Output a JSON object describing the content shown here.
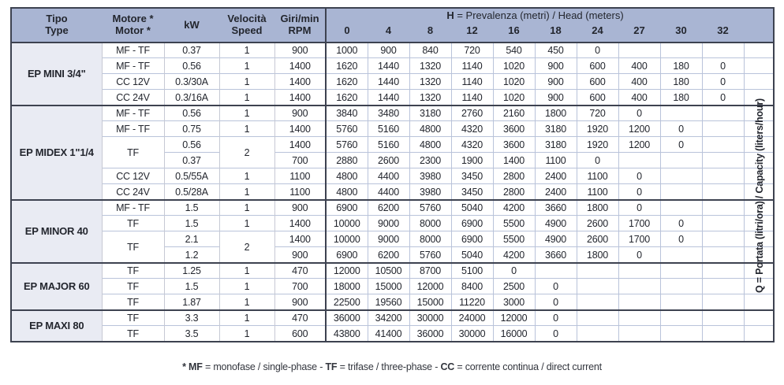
{
  "colors": {
    "header_bg": "#a9b5d3",
    "tipo_bg": "#e9ebf3",
    "grid_light": "#b9c3da",
    "grid_dark": "#3d4250",
    "text": "#23262e"
  },
  "header": {
    "tipo_line1": "Tipo",
    "tipo_line2": "Type",
    "motor_line1": "Motore *",
    "motor_line2": "Motor *",
    "kw": "kW",
    "speed_line1": "Velocità",
    "speed_line2": "Speed",
    "rpm_line1": "Giri/min",
    "rpm_line2": "RPM",
    "h_bold": "H",
    "h_rest": " = Prevalenza (metri) / Head (meters)",
    "head_values": [
      "0",
      "4",
      "8",
      "12",
      "16",
      "18",
      "24",
      "27",
      "30",
      "32"
    ],
    "q_label": "Q = Portata (litri/ora) / Capacity (liters/hour)"
  },
  "sections": [
    {
      "tipo": "EP MINI 3/4\"",
      "rows": [
        {
          "motor": "MF - TF",
          "kw": "0.37",
          "speed": "1",
          "rpm": "900",
          "values": [
            "1000",
            "900",
            "840",
            "720",
            "540",
            "450",
            "0",
            "",
            "",
            ""
          ]
        },
        {
          "motor": "MF - TF",
          "kw": "0.56",
          "speed": "1",
          "rpm": "1400",
          "values": [
            "1620",
            "1440",
            "1320",
            "1140",
            "1020",
            "900",
            "600",
            "400",
            "180",
            "0"
          ]
        },
        {
          "motor": "CC 12V",
          "kw": "0.3/30A",
          "speed": "1",
          "rpm": "1400",
          "values": [
            "1620",
            "1440",
            "1320",
            "1140",
            "1020",
            "900",
            "600",
            "400",
            "180",
            "0"
          ]
        },
        {
          "motor": "CC 24V",
          "kw": "0.3/16A",
          "speed": "1",
          "rpm": "1400",
          "values": [
            "1620",
            "1440",
            "1320",
            "1140",
            "1020",
            "900",
            "600",
            "400",
            "180",
            "0"
          ]
        }
      ]
    },
    {
      "tipo": "EP MIDEX 1\"1/4",
      "rows": [
        {
          "motor": "MF - TF",
          "kw": "0.56",
          "speed": "1",
          "rpm": "900",
          "values": [
            "3840",
            "3480",
            "3180",
            "2760",
            "2160",
            "1800",
            "720",
            "0",
            "",
            ""
          ]
        },
        {
          "motor": "MF - TF",
          "kw": "0.75",
          "speed": "1",
          "rpm": "1400",
          "values": [
            "5760",
            "5160",
            "4800",
            "4320",
            "3600",
            "3180",
            "1920",
            "1200",
            "0",
            ""
          ]
        },
        {
          "motor": "TF",
          "speed": "2",
          "sub": [
            {
              "kw": "0.56",
              "rpm": "1400",
              "values": [
                "5760",
                "5160",
                "4800",
                "4320",
                "3600",
                "3180",
                "1920",
                "1200",
                "0",
                ""
              ]
            },
            {
              "kw": "0.37",
              "rpm": "700",
              "values": [
                "2880",
                "2600",
                "2300",
                "1900",
                "1400",
                "1100",
                "0",
                "",
                "",
                ""
              ]
            }
          ]
        },
        {
          "motor": "CC 12V",
          "kw": "0.5/55A",
          "speed": "1",
          "rpm": "1100",
          "values": [
            "4800",
            "4400",
            "3980",
            "3450",
            "2800",
            "2400",
            "1100",
            "0",
            "",
            ""
          ]
        },
        {
          "motor": "CC 24V",
          "kw": "0.5/28A",
          "speed": "1",
          "rpm": "1100",
          "values": [
            "4800",
            "4400",
            "3980",
            "3450",
            "2800",
            "2400",
            "1100",
            "0",
            "",
            ""
          ]
        }
      ]
    },
    {
      "tipo": "EP MINOR 40",
      "rows": [
        {
          "motor": "MF - TF",
          "kw": "1.5",
          "speed": "1",
          "rpm": "900",
          "values": [
            "6900",
            "6200",
            "5760",
            "5040",
            "4200",
            "3660",
            "1800",
            "0",
            "",
            ""
          ]
        },
        {
          "motor": "TF",
          "kw": "1.5",
          "speed": "1",
          "rpm": "1400",
          "values": [
            "10000",
            "9000",
            "8000",
            "6900",
            "5500",
            "4900",
            "2600",
            "1700",
            "0",
            ""
          ]
        },
        {
          "motor": "TF",
          "speed": "2",
          "sub": [
            {
              "kw": "2.1",
              "rpm": "1400",
              "values": [
                "10000",
                "9000",
                "8000",
                "6900",
                "5500",
                "4900",
                "2600",
                "1700",
                "0",
                ""
              ]
            },
            {
              "kw": "1.2",
              "rpm": "900",
              "values": [
                "6900",
                "6200",
                "5760",
                "5040",
                "4200",
                "3660",
                "1800",
                "0",
                "",
                ""
              ]
            }
          ]
        }
      ]
    },
    {
      "tipo": "EP MAJOR 60",
      "rows": [
        {
          "motor": "TF",
          "kw": "1.25",
          "speed": "1",
          "rpm": "470",
          "values": [
            "12000",
            "10500",
            "8700",
            "5100",
            "0",
            "",
            "",
            "",
            "",
            ""
          ]
        },
        {
          "motor": "TF",
          "kw": "1.5",
          "speed": "1",
          "rpm": "700",
          "values": [
            "18000",
            "15000",
            "12000",
            "8400",
            "2500",
            "0",
            "",
            "",
            "",
            ""
          ]
        },
        {
          "motor": "TF",
          "kw": "1.87",
          "speed": "1",
          "rpm": "900",
          "values": [
            "22500",
            "19560",
            "15000",
            "11220",
            "3000",
            "0",
            "",
            "",
            "",
            ""
          ]
        }
      ]
    },
    {
      "tipo": "EP MAXI 80",
      "rows": [
        {
          "motor": "TF",
          "kw": "3.3",
          "speed": "1",
          "rpm": "470",
          "values": [
            "36000",
            "34200",
            "30000",
            "24000",
            "12000",
            "0",
            "",
            "",
            "",
            ""
          ]
        },
        {
          "motor": "TF",
          "kw": "3.5",
          "speed": "1",
          "rpm": "600",
          "values": [
            "43800",
            "41400",
            "36000",
            "30000",
            "16000",
            "0",
            "",
            "",
            "",
            ""
          ]
        }
      ]
    }
  ],
  "footnote": {
    "segments": [
      {
        "text": "* MF",
        "bold": true
      },
      {
        "text": " = monofase / single-phase - ",
        "bold": false
      },
      {
        "text": "TF",
        "bold": true
      },
      {
        "text": " = trifase / three-phase - ",
        "bold": false
      },
      {
        "text": "CC",
        "bold": true
      },
      {
        "text": " = corrente continua / direct current",
        "bold": false
      }
    ]
  }
}
